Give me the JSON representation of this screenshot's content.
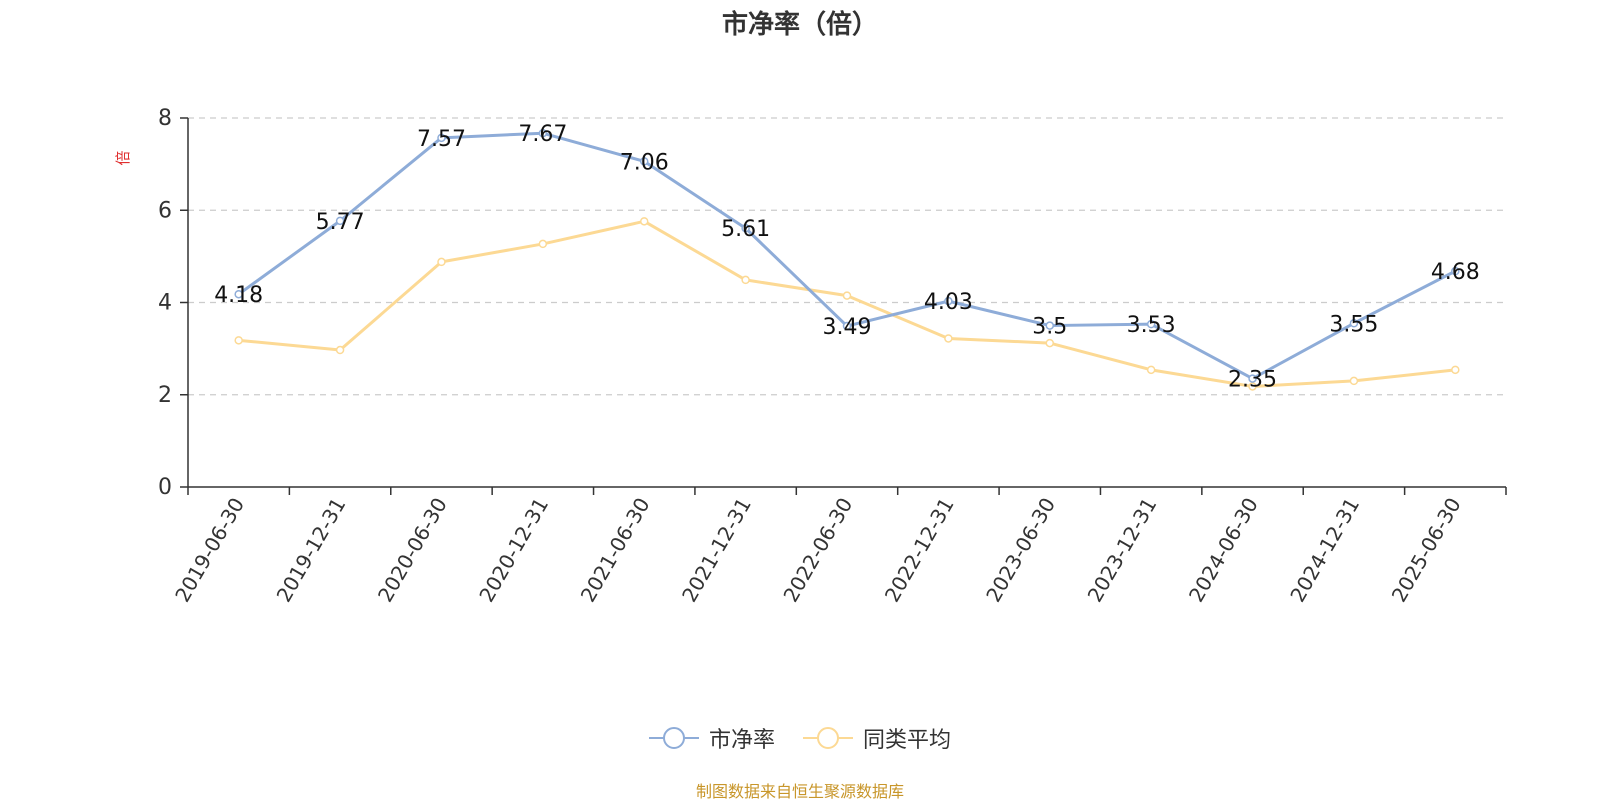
{
  "chart_data": {
    "type": "line",
    "title": "市净率（倍）",
    "ylabel": "倍",
    "ylim": [
      0,
      8
    ],
    "yticks": [
      0,
      2,
      4,
      6,
      8
    ],
    "grid": "horizontal-dashed",
    "legend_position": "bottom-center",
    "categories": [
      "2019-06-30",
      "2019-12-31",
      "2020-06-30",
      "2020-12-31",
      "2021-06-30",
      "2021-12-31",
      "2022-06-30",
      "2022-12-31",
      "2023-06-30",
      "2023-12-31",
      "2024-06-30",
      "2024-12-31",
      "2025-06-30"
    ],
    "series": [
      {
        "name": "市净率",
        "color": "#8eacd8",
        "values": [
          4.18,
          5.77,
          7.57,
          7.67,
          7.06,
          5.61,
          3.49,
          4.03,
          3.5,
          3.53,
          2.35,
          3.55,
          4.68
        ],
        "data_labels": [
          "4.18",
          "5.77",
          "7.57",
          "7.67",
          "7.06",
          "5.61",
          "3.49",
          "4.03",
          "3.5",
          "3.53",
          "2.35",
          "3.55",
          "4.68"
        ]
      },
      {
        "name": "同类平均",
        "color": "#fcd994",
        "values": [
          3.18,
          2.97,
          4.88,
          5.27,
          5.76,
          4.49,
          4.15,
          3.22,
          3.12,
          2.54,
          2.18,
          2.3,
          2.54
        ]
      }
    ]
  },
  "footer": {
    "source": "制图数据来自恒生聚源数据库",
    "source_color": "#c8962a"
  },
  "colors": {
    "ylabel": "#e03030",
    "axis": "#333333",
    "grid": "#cccccc"
  }
}
